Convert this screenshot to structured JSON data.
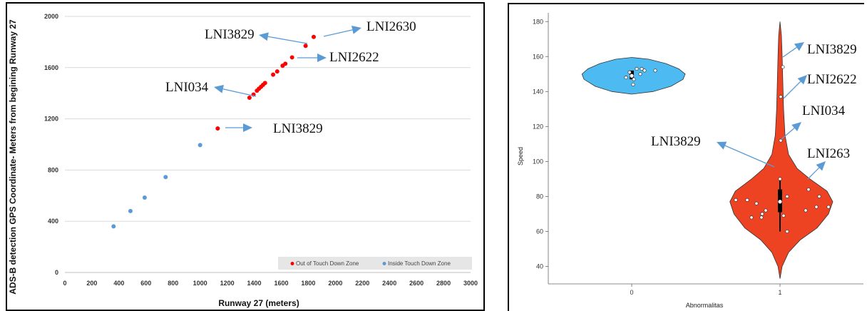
{
  "chart_data": [
    {
      "type": "scatter",
      "xlabel": "Runway 27 (meters)",
      "ylabel": "ADS-B detection GPS Coordinate- Meters from begining Runway 27",
      "xlim": [
        0,
        3000
      ],
      "ylim": [
        0,
        2000
      ],
      "xticks": [
        "0",
        "200",
        "400",
        "600",
        "800",
        "1000",
        "1200",
        "1400",
        "1600",
        "1800",
        "2000",
        "2200",
        "2400",
        "2600",
        "2800",
        "3000"
      ],
      "yticks": [
        "0",
        "400",
        "800",
        "1200",
        "1600",
        "2000"
      ],
      "grid": "horizontal",
      "legend_position": "bottom-right",
      "series": [
        {
          "name": "Out of Touch Down Zone",
          "color": "#ff0000",
          "points": [
            {
              "x": 1130,
              "y": 1125
            },
            {
              "x": 1365,
              "y": 1365
            },
            {
              "x": 1395,
              "y": 1390
            },
            {
              "x": 1420,
              "y": 1420
            },
            {
              "x": 1435,
              "y": 1435
            },
            {
              "x": 1450,
              "y": 1450
            },
            {
              "x": 1465,
              "y": 1465
            },
            {
              "x": 1480,
              "y": 1480
            },
            {
              "x": 1540,
              "y": 1545
            },
            {
              "x": 1570,
              "y": 1570
            },
            {
              "x": 1610,
              "y": 1615
            },
            {
              "x": 1630,
              "y": 1630
            },
            {
              "x": 1680,
              "y": 1680
            },
            {
              "x": 1780,
              "y": 1770
            },
            {
              "x": 1840,
              "y": 1840
            }
          ]
        },
        {
          "name": "Inside Touch Down Zone",
          "color": "#5b9bd5",
          "points": [
            {
              "x": 360,
              "y": 360
            },
            {
              "x": 485,
              "y": 480
            },
            {
              "x": 590,
              "y": 585
            },
            {
              "x": 745,
              "y": 745
            },
            {
              "x": 1000,
              "y": 995
            }
          ]
        }
      ],
      "annotations": [
        {
          "text": "LNI2630"
        },
        {
          "text": "LNI3829"
        },
        {
          "text": "LNI2622"
        },
        {
          "text": "LNI034"
        },
        {
          "text": "LNI3829"
        }
      ]
    },
    {
      "type": "violin",
      "xlabel": "Abnormalitas",
      "ylabel": "Speed",
      "categories": [
        "0",
        "1"
      ],
      "ylim": [
        30,
        185
      ],
      "yticks": [
        "40",
        "60",
        "80",
        "100",
        "120",
        "140",
        "160",
        "180"
      ],
      "series": [
        {
          "category": "0",
          "color": "#4dbbf2",
          "median": 149,
          "q1": 147,
          "q3": 152,
          "points": [
            147,
            148,
            150,
            151,
            152,
            153,
            153,
            152,
            144
          ]
        },
        {
          "category": "1",
          "color": "#ee4322",
          "median": 77,
          "q1": 71,
          "q3": 84,
          "whisker_low": 60,
          "whisker_high": 90,
          "points": [
            154,
            137,
            112,
            90,
            84,
            80,
            80,
            78,
            78,
            76,
            74,
            74,
            72,
            72,
            70,
            69,
            68,
            68,
            60
          ]
        }
      ],
      "annotations": [
        {
          "text": "LNI3829"
        },
        {
          "text": "LNI2622"
        },
        {
          "text": "LNI034"
        },
        {
          "text": "LNI3829"
        },
        {
          "text": "LNI263"
        }
      ]
    }
  ]
}
